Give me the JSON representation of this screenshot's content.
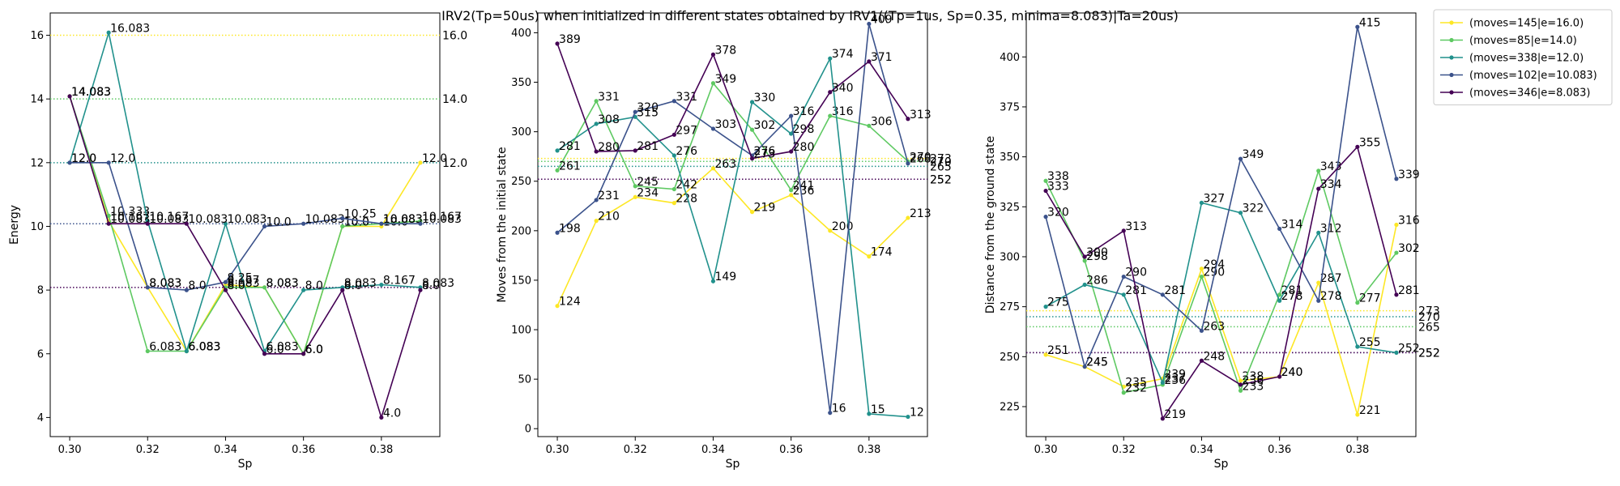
{
  "title": "IRV2(Tp=50us) when initialized in different states obtained by IRV1((Tp=1us, Sp=0.35, minima=8.083)|Ta=20us)",
  "colors": {
    "moves=145|e=16.0": "#fde725",
    "moves=85|e=14.0": "#5ec962",
    "moves=338|e=12.0": "#21918c",
    "moves=102|e=10.083": "#3b528b",
    "moves=346|e=8.083": "#440154"
  },
  "legend": {
    "position": "outside-top-right",
    "entries": [
      "(moves=145|e=16.0)",
      "(moves=85|e=14.0)",
      "(moves=338|e=12.0)",
      "(moves=102|e=10.083)",
      "(moves=346|e=8.083)"
    ]
  },
  "chart_data": [
    {
      "type": "line",
      "xlabel": "Sp",
      "ylabel": "Energy",
      "xlim": [
        0.295,
        0.395
      ],
      "ylim": [
        3.4,
        16.7
      ],
      "xticks": [
        "0.30",
        "0.32",
        "0.34",
        "0.36",
        "0.38"
      ],
      "yticks": [
        "4",
        "6",
        "8",
        "10",
        "12",
        "14",
        "16"
      ],
      "x": [
        0.3,
        0.31,
        0.32,
        0.33,
        0.34,
        0.35,
        0.36,
        0.37,
        0.38,
        0.39
      ],
      "series": [
        {
          "name": "(moves=145|e=16.0)",
          "values": [
            14.083,
            10.167,
            8.083,
            6.083,
            8.167,
            8.083,
            6.0,
            10.0,
            10.0,
            12.0
          ],
          "hline": 16.0,
          "hline_label": "16.0",
          "labels": [
            "14.083",
            "10.167",
            "8.083",
            "6.083",
            "8.167",
            "8.083",
            "6.0",
            "10.0",
            "10.0",
            "12.0"
          ]
        },
        {
          "name": "(moves=85|e=14.0)",
          "values": [
            14.083,
            10.333,
            6.083,
            6.083,
            8.083,
            8.083,
            6.0,
            10.0,
            10.083,
            10.167
          ],
          "hline": 14.0,
          "hline_label": "14.0",
          "labels": [
            "14.083",
            "10.333",
            "6.083",
            "6.083",
            "8.083",
            "8.083",
            "6.0",
            "10.0",
            "10.083",
            "10.167"
          ]
        },
        {
          "name": "(moves=338|e=12.0)",
          "values": [
            12.0,
            16.083,
            10.167,
            6.083,
            10.083,
            6.083,
            8.0,
            8.083,
            8.167,
            8.083
          ],
          "hline": 12.0,
          "hline_label": "12.0",
          "labels": [
            "12.0",
            "16.083",
            "10.167",
            "6.083",
            "10.083",
            "6.083",
            "8.0",
            "8.083",
            "8.167",
            "8.083"
          ]
        },
        {
          "name": "(moves=102|e=10.083)",
          "values": [
            12.0,
            12.0,
            8.083,
            8.0,
            8.25,
            10.0,
            10.083,
            10.25,
            10.083,
            10.083
          ],
          "hline": 10.083,
          "hline_label": "",
          "labels": [
            "12.0",
            "12.0",
            "8.083",
            "8.0",
            "8.25",
            "10.0",
            "10.083",
            "10.25",
            "10.083",
            "10.083"
          ]
        },
        {
          "name": "(moves=346|e=8.083)",
          "values": [
            14.083,
            10.083,
            10.083,
            10.083,
            8.0,
            6.0,
            6.0,
            8.0,
            4.0,
            8.0
          ],
          "hline": 8.083,
          "hline_label": "",
          "labels": [
            "14.083",
            "10.083",
            "10.083",
            "10.083",
            "8.0",
            "6.0",
            "6.0",
            "8.0",
            "4.0",
            "8.0"
          ]
        }
      ]
    },
    {
      "type": "line",
      "xlabel": "Sp",
      "ylabel": "Moves from the initial state",
      "xlim": [
        0.295,
        0.395
      ],
      "ylim": [
        -8,
        420
      ],
      "xticks": [
        "0.30",
        "0.32",
        "0.34",
        "0.36",
        "0.38"
      ],
      "yticks": [
        "0",
        "50",
        "100",
        "150",
        "200",
        "250",
        "300",
        "350",
        "400"
      ],
      "x": [
        0.3,
        0.31,
        0.32,
        0.33,
        0.34,
        0.35,
        0.36,
        0.37,
        0.38,
        0.39
      ],
      "series": [
        {
          "name": "(moves=145|e=16.0)",
          "values": [
            124,
            210,
            234,
            228,
            263,
            219,
            236,
            200,
            174,
            213
          ],
          "hline": 273,
          "hline_label": "273"
        },
        {
          "name": "(moves=85|e=14.0)",
          "values": [
            261,
            331,
            245,
            242,
            349,
            302,
            241,
            316,
            306,
            270
          ],
          "hline": 270,
          "hline_label": "270"
        },
        {
          "name": "(moves=338|e=12.0)",
          "values": [
            281,
            308,
            315,
            276,
            149,
            330,
            298,
            374,
            15,
            12
          ],
          "hline": 265,
          "hline_label": "265"
        },
        {
          "name": "(moves=102|e=10.083)",
          "values": [
            198,
            231,
            320,
            331,
            303,
            276,
            316,
            16,
            409,
            268
          ],
          "hline": 252,
          "hline_label": "252"
        },
        {
          "name": "(moves=346|e=8.083)",
          "values": [
            389,
            280,
            281,
            297,
            378,
            273,
            280,
            340,
            371,
            313
          ],
          "hline": 252,
          "hline_label": "252"
        }
      ]
    },
    {
      "type": "line",
      "xlabel": "Sp",
      "ylabel": "Distance from the ground state",
      "xlim": [
        0.295,
        0.395
      ],
      "ylim": [
        210,
        422
      ],
      "xticks": [
        "0.30",
        "0.32",
        "0.34",
        "0.36",
        "0.38"
      ],
      "yticks": [
        "225",
        "250",
        "275",
        "300",
        "325",
        "350",
        "375",
        "400"
      ],
      "x": [
        0.3,
        0.31,
        0.32,
        0.33,
        0.34,
        0.35,
        0.36,
        0.37,
        0.38,
        0.39
      ],
      "series": [
        {
          "name": "(moves=145|e=16.0)",
          "values": [
            251,
            245,
            235,
            239,
            294,
            238,
            240,
            287,
            221,
            316
          ],
          "hline": 273,
          "hline_label": "273"
        },
        {
          "name": "(moves=85|e=14.0)",
          "values": [
            338,
            298,
            232,
            236,
            290,
            233,
            281,
            343,
            277,
            302
          ],
          "hline": 265,
          "hline_label": "265"
        },
        {
          "name": "(moves=338|e=12.0)",
          "values": [
            275,
            286,
            281,
            237,
            327,
            322,
            278,
            312,
            255,
            252
          ],
          "hline": 270,
          "hline_label": "270"
        },
        {
          "name": "(moves=102|e=10.083)",
          "values": [
            320,
            245,
            290,
            281,
            263,
            349,
            314,
            278,
            415,
            339
          ],
          "hline": 252,
          "hline_label": "252"
        },
        {
          "name": "(moves=346|e=8.083)",
          "values": [
            333,
            300,
            313,
            219,
            248,
            236,
            240,
            334,
            355,
            281
          ],
          "hline": 252,
          "hline_label": "252"
        }
      ]
    }
  ]
}
